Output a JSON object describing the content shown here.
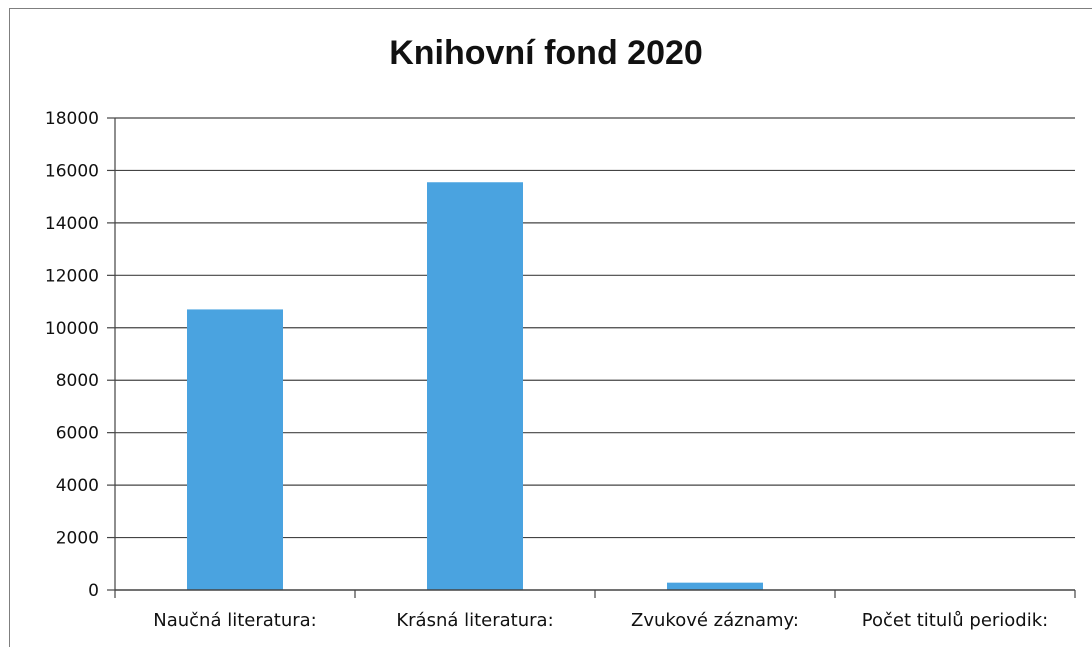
{
  "chart_data": {
    "type": "bar",
    "title": "Knihovní fond 2020",
    "xlabel": "",
    "ylabel": "",
    "categories": [
      "Naučná literatura:",
      "Krásná literatura:",
      "Zvukové záznamy:",
      "Počet titulů periodik:"
    ],
    "values": [
      10700,
      15550,
      280,
      0
    ],
    "ylim": [
      0,
      18000
    ],
    "yticks": [
      0,
      2000,
      4000,
      6000,
      8000,
      10000,
      12000,
      14000,
      16000,
      18000
    ],
    "grid": true,
    "legend": "none",
    "bar_color": "#4aa3e0"
  }
}
